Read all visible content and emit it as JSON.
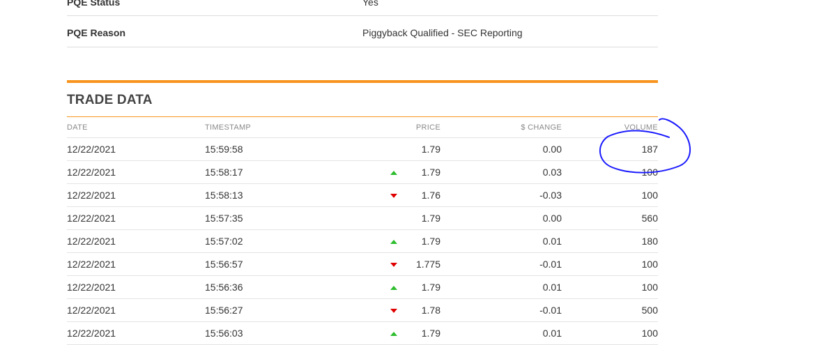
{
  "pqe": {
    "status_label": "PQE Status",
    "status_value": "Yes",
    "reason_label": "PQE Reason",
    "reason_value": "Piggyback Qualified - SEC Reporting"
  },
  "trade_data": {
    "title": "TRADE DATA",
    "columns": [
      "DATE",
      "TIMESTAMP",
      "PRICE",
      "$ CHANGE",
      "VOLUME"
    ],
    "rows": [
      {
        "date": "12/22/2021",
        "timestamp": "15:59:58",
        "direction": "none",
        "price": "1.79",
        "change": "0.00",
        "volume": "187"
      },
      {
        "date": "12/22/2021",
        "timestamp": "15:58:17",
        "direction": "up",
        "price": "1.79",
        "change": "0.03",
        "volume": "100"
      },
      {
        "date": "12/22/2021",
        "timestamp": "15:58:13",
        "direction": "down",
        "price": "1.76",
        "change": "-0.03",
        "volume": "100"
      },
      {
        "date": "12/22/2021",
        "timestamp": "15:57:35",
        "direction": "none",
        "price": "1.79",
        "change": "0.00",
        "volume": "560"
      },
      {
        "date": "12/22/2021",
        "timestamp": "15:57:02",
        "direction": "up",
        "price": "1.79",
        "change": "0.01",
        "volume": "180"
      },
      {
        "date": "12/22/2021",
        "timestamp": "15:56:57",
        "direction": "down",
        "price": "1.775",
        "change": "-0.01",
        "volume": "100"
      },
      {
        "date": "12/22/2021",
        "timestamp": "15:56:36",
        "direction": "up",
        "price": "1.79",
        "change": "0.01",
        "volume": "100"
      },
      {
        "date": "12/22/2021",
        "timestamp": "15:56:27",
        "direction": "down",
        "price": "1.78",
        "change": "-0.01",
        "volume": "500"
      },
      {
        "date": "12/22/2021",
        "timestamp": "15:56:03",
        "direction": "up",
        "price": "1.79",
        "change": "0.01",
        "volume": "100"
      }
    ]
  },
  "colors": {
    "accent": "#f7941d",
    "up": "#2ebd2e",
    "down": "#e00000",
    "annotation": "#1a1aff"
  },
  "icons": {
    "up": "triangle-up-icon",
    "down": "triangle-down-icon"
  }
}
